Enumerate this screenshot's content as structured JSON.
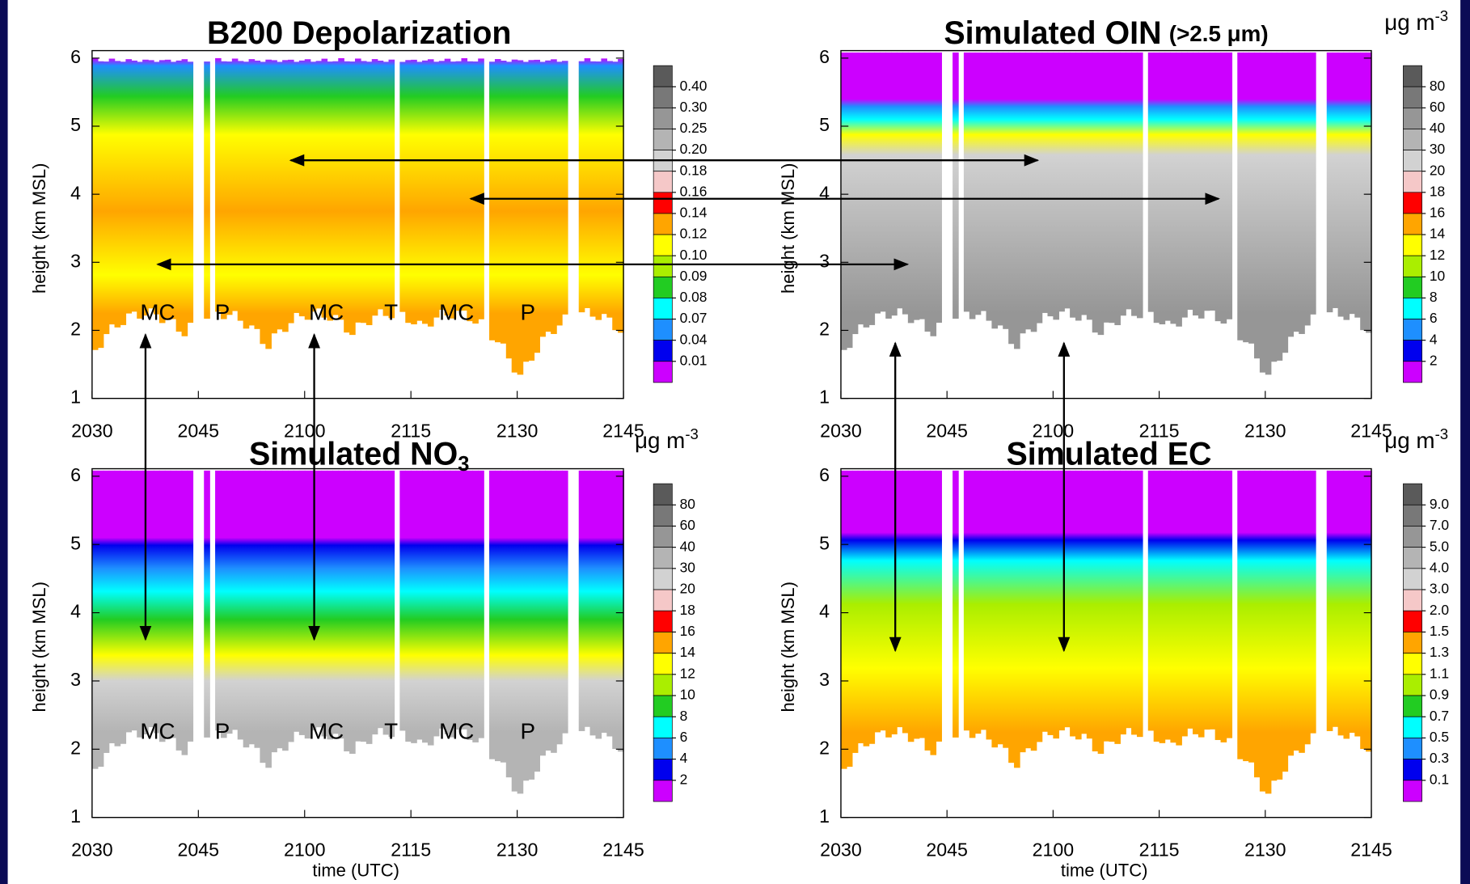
{
  "chart_data": [
    {
      "type": "curtain",
      "title": "B200 Depolarization",
      "ylabel": "height (km MSL)",
      "ylim": [
        1,
        6
      ],
      "yticks": [
        1,
        2,
        3,
        4,
        5,
        6
      ],
      "xticks": [
        "2030",
        "2045",
        "2100",
        "2115",
        "2130",
        "2145"
      ],
      "annotations": [
        "MC",
        "P",
        "MC",
        "T",
        "MC",
        "P"
      ],
      "colorbar": {
        "ticks": [
          {
            "value": 0.4,
            "label": "0.40"
          },
          {
            "value": 0.3,
            "label": "0.30"
          },
          0.25,
          {
            "value": 0.2,
            "label": "0.20"
          },
          0.18,
          0.16,
          0.14,
          0.12,
          {
            "value": 0.1,
            "label": "0.10"
          },
          0.09,
          0.08,
          0.07,
          0.04,
          0.01
        ],
        "colors": [
          "#5a5a5a",
          "#787878",
          "#969696",
          "#b4b4b4",
          "#d2d2d2",
          "#f5c8c8",
          "#ff0000",
          "#ffa500",
          "#ffff00",
          "#aaee00",
          "#22cc22",
          "#00ffff",
          "#1e8fff",
          "#0000ee",
          "#cc00ff"
        ]
      }
    },
    {
      "type": "curtain",
      "title": "Simulated OIN",
      "title_note": "(>2.5 μm)",
      "ylabel": "height (km MSL)",
      "ylim": [
        1,
        6
      ],
      "yticks": [
        1,
        2,
        3,
        4,
        5,
        6
      ],
      "xticks": [
        "2030",
        "2045",
        "2100",
        "2115",
        "2130",
        "2145"
      ],
      "colorbar": {
        "unit": "μg m",
        "unit_sup": "-3",
        "ticks": [
          80,
          60,
          40,
          30,
          20,
          18,
          16,
          14,
          12,
          10,
          8,
          6,
          4,
          2
        ],
        "colors": [
          "#5a5a5a",
          "#787878",
          "#969696",
          "#b4b4b4",
          "#d2d2d2",
          "#f5c8c8",
          "#ff0000",
          "#ffa500",
          "#ffff00",
          "#aaee00",
          "#22cc22",
          "#00ffff",
          "#1e8fff",
          "#0000ee",
          "#cc00ff"
        ]
      }
    },
    {
      "type": "curtain",
      "title": "Simulated NO",
      "title_sub": "3",
      "ylabel": "height (km MSL)",
      "xlabel": "time (UTC)",
      "ylim": [
        1,
        6
      ],
      "yticks": [
        1,
        2,
        3,
        4,
        5,
        6
      ],
      "xticks": [
        "2030",
        "2045",
        "2100",
        "2115",
        "2130",
        "2145"
      ],
      "annotations": [
        "MC",
        "P",
        "MC",
        "T",
        "MC",
        "P"
      ],
      "colorbar": {
        "unit": "μg m",
        "unit_sup": "-3",
        "ticks": [
          80,
          60,
          40,
          30,
          20,
          18,
          16,
          14,
          12,
          10,
          8,
          6,
          4,
          2
        ],
        "colors": [
          "#5a5a5a",
          "#787878",
          "#969696",
          "#b4b4b4",
          "#d2d2d2",
          "#f5c8c8",
          "#ff0000",
          "#ffa500",
          "#ffff00",
          "#aaee00",
          "#22cc22",
          "#00ffff",
          "#1e8fff",
          "#0000ee",
          "#cc00ff"
        ]
      }
    },
    {
      "type": "curtain",
      "title": "Simulated EC",
      "ylabel": "height (km MSL)",
      "xlabel": "time (UTC)",
      "ylim": [
        1,
        6
      ],
      "yticks": [
        1,
        2,
        3,
        4,
        5,
        6
      ],
      "xticks": [
        "2030",
        "2045",
        "2100",
        "2115",
        "2130",
        "2145"
      ],
      "colorbar": {
        "unit": "μg m",
        "unit_sup": "-3",
        "ticks": [
          {
            "value": 9,
            "label": "9.0"
          },
          {
            "value": 7,
            "label": "7.0"
          },
          {
            "value": 5,
            "label": "5.0"
          },
          {
            "value": 4,
            "label": "4.0"
          },
          {
            "value": 3,
            "label": "3.0"
          },
          {
            "value": 2,
            "label": "2.0"
          },
          1.5,
          1.3,
          1.1,
          0.9,
          0.7,
          0.5,
          0.3,
          0.1
        ],
        "colors": [
          "#5a5a5a",
          "#787878",
          "#969696",
          "#b4b4b4",
          "#d2d2d2",
          "#f5c8c8",
          "#ff0000",
          "#ffa500",
          "#ffff00",
          "#aaee00",
          "#22cc22",
          "#00ffff",
          "#1e8fff",
          "#0000ee",
          "#cc00ff"
        ]
      }
    }
  ]
}
